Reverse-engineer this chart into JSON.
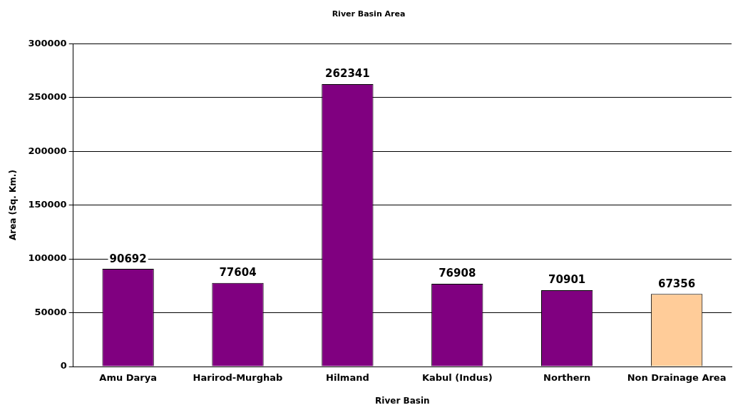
{
  "chart_data": {
    "type": "bar",
    "title": "River Basin Area",
    "xlabel": "River Basin",
    "ylabel": "Area (Sq. Km.)",
    "categories": [
      "Amu Darya",
      "Harirod-Murghab",
      "Hilmand",
      "Kabul (Indus)",
      "Northern",
      "Non Drainage Area"
    ],
    "values": [
      90692,
      77604,
      262341,
      76908,
      70901,
      67356
    ],
    "colors": [
      "#800080",
      "#800080",
      "#800080",
      "#800080",
      "#800080",
      "#ffcc99"
    ],
    "ylim": [
      0,
      300000
    ],
    "yticks": [
      0,
      50000,
      100000,
      150000,
      200000,
      250000,
      300000
    ],
    "grid": "y",
    "data_labels": true,
    "legend": false
  }
}
